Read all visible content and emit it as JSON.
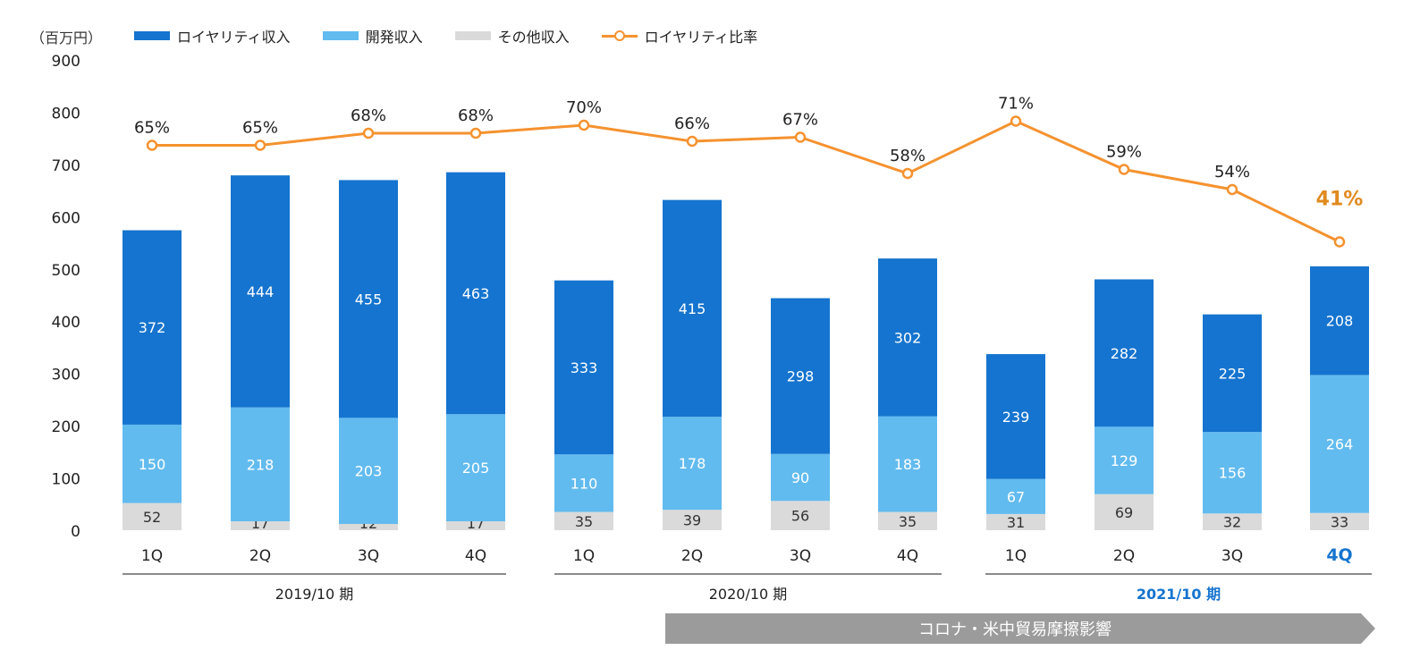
{
  "unit_label": "（百万円）",
  "legend": [
    {
      "label": "ロイヤリティ収入",
      "color": "#1574CF",
      "kind": "bar"
    },
    {
      "label": "開発収入",
      "color": "#62BBEF",
      "kind": "bar"
    },
    {
      "label": "その他収入",
      "color": "#DADADA",
      "kind": "bar"
    },
    {
      "label": "ロイヤリティ比率",
      "color": "#F5922F",
      "kind": "line"
    }
  ],
  "banner": {
    "label": "コロナ・米中貿易摩擦影響",
    "color": "#9B9B9B"
  },
  "chart_data": {
    "type": "bar",
    "stacked": true,
    "ylim": [
      0,
      900
    ],
    "yticks": [
      0,
      100,
      200,
      300,
      400,
      500,
      600,
      700,
      800,
      900
    ],
    "categories": [
      "1Q",
      "2Q",
      "3Q",
      "4Q",
      "1Q",
      "2Q",
      "3Q",
      "4Q",
      "1Q",
      "2Q",
      "3Q",
      "4Q"
    ],
    "groups": [
      {
        "label": "2019/10 期",
        "highlight": false
      },
      {
        "label": "2020/10 期",
        "highlight": false
      },
      {
        "label": "2021/10 期",
        "highlight": true
      }
    ],
    "highlight_index": 11,
    "series": [
      {
        "name": "その他収入",
        "color": "#DADADA",
        "label_color": "#333333",
        "values": [
          52,
          17,
          12,
          17,
          35,
          39,
          56,
          35,
          31,
          69,
          32,
          33
        ]
      },
      {
        "name": "開発収入",
        "color": "#62BBEF",
        "label_color": "#ffffff",
        "values": [
          150,
          218,
          203,
          205,
          110,
          178,
          90,
          183,
          67,
          129,
          156,
          264
        ]
      },
      {
        "name": "ロイヤリティ収入",
        "color": "#1574CF",
        "label_color": "#ffffff",
        "values": [
          372,
          444,
          455,
          463,
          333,
          415,
          298,
          302,
          239,
          282,
          225,
          208
        ]
      }
    ],
    "ratio_series": {
      "name": "ロイヤリティ比率",
      "color": "#F5922F",
      "highlight_color": "#E08A1E",
      "values": [
        65,
        65,
        68,
        68,
        70,
        66,
        67,
        58,
        71,
        59,
        54,
        41
      ],
      "labels": [
        "65%",
        "65%",
        "68%",
        "68%",
        "70%",
        "66%",
        "67%",
        "58%",
        "71%",
        "59%",
        "54%",
        "41%"
      ]
    }
  }
}
